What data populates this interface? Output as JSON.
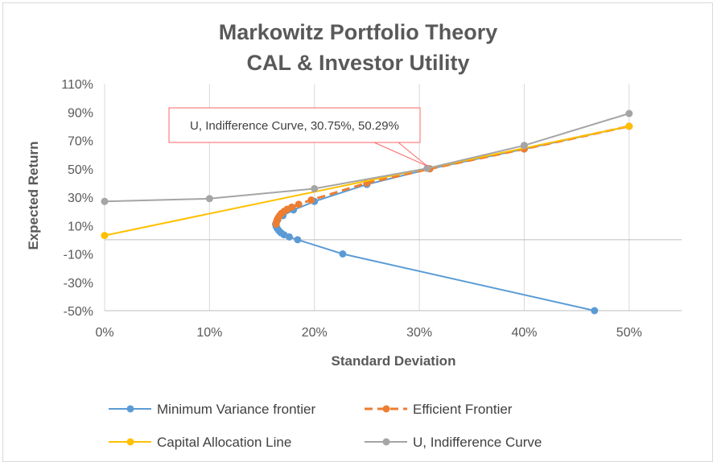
{
  "chart_data": {
    "type": "line",
    "title": [
      "Markowitz Portfolio Theory",
      "CAL & Investor Utility"
    ],
    "xlabel": "Standard Deviation",
    "ylabel": "Expected Return",
    "xlim": [
      0,
      0.55
    ],
    "ylim": [
      -0.5,
      1.1
    ],
    "xticks": [
      0,
      0.1,
      0.2,
      0.3,
      0.4,
      0.5
    ],
    "xtick_labels": [
      "0%",
      "10%",
      "20%",
      "30%",
      "40%",
      "50%"
    ],
    "yticks": [
      1.1,
      0.9,
      0.7,
      0.5,
      0.3,
      0.1,
      -0.1,
      -0.3,
      -0.5
    ],
    "ytick_labels": [
      "110%",
      "90%",
      "70%",
      "50%",
      "30%",
      "10%",
      "-10%",
      "-30%",
      "-50%"
    ],
    "grid": "vertical",
    "legend_position": "bottom",
    "series": [
      {
        "name": "Minimum Variance frontier",
        "color": "#5b9bd5",
        "style": "solid",
        "points": [
          [
            0.467,
            -0.5
          ],
          [
            0.227,
            -0.1
          ],
          [
            0.184,
            0.0
          ],
          [
            0.176,
            0.02
          ],
          [
            0.171,
            0.035
          ],
          [
            0.168,
            0.05
          ],
          [
            0.166,
            0.065
          ],
          [
            0.1645,
            0.08
          ],
          [
            0.1635,
            0.095
          ],
          [
            0.163,
            0.11
          ],
          [
            0.165,
            0.14
          ],
          [
            0.17,
            0.17
          ],
          [
            0.18,
            0.21
          ],
          [
            0.2,
            0.27
          ],
          [
            0.25,
            0.39
          ],
          [
            0.31,
            0.5
          ],
          [
            0.4,
            0.64
          ],
          [
            0.5,
            0.8
          ]
        ]
      },
      {
        "name": "Efficient Frontier",
        "color": "#ed7d31",
        "style": "dashed",
        "points": [
          [
            0.1635,
            0.11
          ],
          [
            0.1638,
            0.125
          ],
          [
            0.1645,
            0.14
          ],
          [
            0.1655,
            0.155
          ],
          [
            0.1668,
            0.17
          ],
          [
            0.1685,
            0.185
          ],
          [
            0.171,
            0.2
          ],
          [
            0.174,
            0.215
          ],
          [
            0.1785,
            0.23
          ],
          [
            0.185,
            0.25
          ],
          [
            0.197,
            0.28
          ],
          [
            0.25,
            0.4
          ],
          [
            0.31,
            0.5
          ],
          [
            0.4,
            0.64
          ],
          [
            0.5,
            0.8
          ]
        ]
      },
      {
        "name": "Capital Allocation Line",
        "color": "#ffc000",
        "style": "solid",
        "points": [
          [
            0.0,
            0.03
          ],
          [
            0.5,
            0.8
          ]
        ]
      },
      {
        "name": "U, Indifference Curve",
        "color": "#a5a5a5",
        "style": "solid",
        "points": [
          [
            0.0,
            0.27
          ],
          [
            0.1,
            0.29
          ],
          [
            0.2,
            0.36
          ],
          [
            0.3075,
            0.5029
          ],
          [
            0.4,
            0.665
          ],
          [
            0.5,
            0.89
          ]
        ]
      }
    ],
    "annotation": {
      "text": "U, Indifference Curve, 30.75%, 50.29%",
      "x": 0.3075,
      "y": 0.5029
    }
  }
}
